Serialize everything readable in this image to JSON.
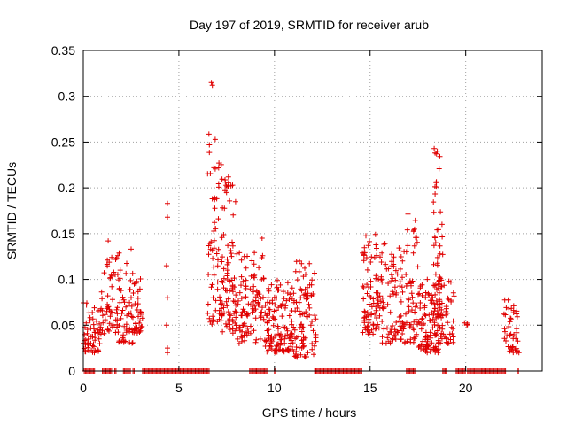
{
  "chart_data": {
    "type": "scatter",
    "title": "Day 197 of 2019, SRMTID for receiver arub",
    "xlabel": "GPS time / hours",
    "ylabel": "SRMTID / TECUs",
    "xlim": [
      0,
      24
    ],
    "ylim": [
      0,
      0.35
    ],
    "x_ticks": [
      0,
      5,
      10,
      15,
      20
    ],
    "x_tick_labels": [
      "0",
      "5",
      "10",
      "15",
      "20"
    ],
    "y_ticks": [
      0,
      0.05,
      0.1,
      0.15,
      0.2,
      0.25,
      0.3,
      0.35
    ],
    "y_tick_labels": [
      "0",
      "0.05",
      "0.1",
      "0.15",
      "0.2",
      "0.25",
      "0.3",
      "0.35"
    ],
    "grid": true,
    "marker": "+",
    "series_color": "#e00000",
    "clusters": [
      {
        "x": [
          0.0,
          0.9
        ],
        "y": [
          0.02,
          0.075
        ],
        "n": 60
      },
      {
        "x": [
          0.9,
          1.8
        ],
        "y": [
          0.04,
          0.13
        ],
        "n": 55
      },
      {
        "x": [
          1.8,
          2.6
        ],
        "y": [
          0.03,
          0.13
        ],
        "n": 55
      },
      {
        "x": [
          2.6,
          3.1
        ],
        "y": [
          0.04,
          0.105
        ],
        "n": 35
      },
      {
        "x": [
          6.5,
          7.8
        ],
        "y": [
          0.05,
          0.26
        ],
        "n": 90
      },
      {
        "x": [
          7.2,
          8.0
        ],
        "y": [
          0.04,
          0.22
        ],
        "n": 50
      },
      {
        "x": [
          7.8,
          9.5
        ],
        "y": [
          0.03,
          0.13
        ],
        "n": 110
      },
      {
        "x": [
          9.5,
          11.0
        ],
        "y": [
          0.02,
          0.1
        ],
        "n": 130
      },
      {
        "x": [
          11.0,
          12.2
        ],
        "y": [
          0.015,
          0.12
        ],
        "n": 90
      },
      {
        "x": [
          14.6,
          15.6
        ],
        "y": [
          0.04,
          0.155
        ],
        "n": 85
      },
      {
        "x": [
          15.6,
          16.8
        ],
        "y": [
          0.03,
          0.14
        ],
        "n": 90
      },
      {
        "x": [
          16.8,
          17.5
        ],
        "y": [
          0.03,
          0.18
        ],
        "n": 55
      },
      {
        "x": [
          17.5,
          18.6
        ],
        "y": [
          0.02,
          0.1
        ],
        "n": 110
      },
      {
        "x": [
          18.3,
          18.8
        ],
        "y": [
          0.06,
          0.245
        ],
        "n": 45
      },
      {
        "x": [
          18.6,
          19.4
        ],
        "y": [
          0.03,
          0.1
        ],
        "n": 50
      },
      {
        "x": [
          19.9,
          20.1
        ],
        "y": [
          0.05,
          0.065
        ],
        "n": 4
      },
      {
        "x": [
          22.0,
          22.8
        ],
        "y": [
          0.02,
          0.08
        ],
        "n": 45
      }
    ],
    "isolated_points": [
      {
        "x": 6.7,
        "y": 0.315
      },
      {
        "x": 6.75,
        "y": 0.312
      },
      {
        "x": 4.4,
        "y": 0.183
      },
      {
        "x": 4.4,
        "y": 0.168
      },
      {
        "x": 4.35,
        "y": 0.115
      },
      {
        "x": 4.4,
        "y": 0.08
      },
      {
        "x": 4.35,
        "y": 0.05
      },
      {
        "x": 4.4,
        "y": 0.025
      },
      {
        "x": 4.4,
        "y": 0.02
      },
      {
        "x": 9.35,
        "y": 0.145
      },
      {
        "x": 18.35,
        "y": 0.243
      },
      {
        "x": 18.4,
        "y": 0.238
      },
      {
        "x": 1.3,
        "y": 0.142
      },
      {
        "x": 2.5,
        "y": 0.133
      }
    ],
    "zero_ranges": [
      [
        0.05,
        0.6
      ],
      [
        1.0,
        1.5
      ],
      [
        1.65,
        1.75
      ],
      [
        2.1,
        2.5
      ],
      [
        2.6,
        2.7
      ],
      [
        3.1,
        6.6
      ],
      [
        8.7,
        9.6
      ],
      [
        10.0,
        10.1
      ],
      [
        12.1,
        14.6
      ],
      [
        16.9,
        17.4
      ],
      [
        18.8,
        19.0
      ],
      [
        19.5,
        20.0
      ],
      [
        20.1,
        22.1
      ],
      [
        22.7,
        22.8
      ]
    ]
  }
}
